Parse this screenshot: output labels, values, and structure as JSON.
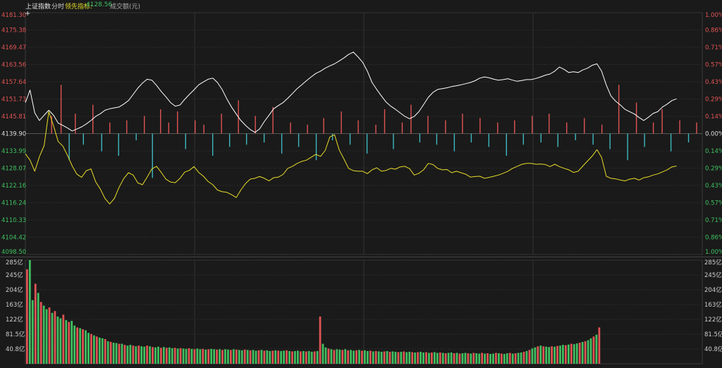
{
  "header": {
    "index_name": "上证指数",
    "timeshare": "分时",
    "leading_label": "领先指标:",
    "leading_value": "4128.56",
    "turnover_label": "成交额(元)"
  },
  "colors": {
    "background": "#1a1a1a",
    "up": "#e05454",
    "down": "#3fb8c0",
    "price_line": "#ffffff",
    "leading_line": "#e8dc2a",
    "vol_up": "#e05454",
    "vol_down": "#3fc060"
  },
  "chart_data": [
    {
      "type": "line",
      "title": "上证指数 分时",
      "y_left_ticks": [
        "4181.30",
        "4175.38",
        "4169.47",
        "4163.56",
        "4157.64",
        "4151.73",
        "4145.81",
        "4139.90",
        "4133.99",
        "4128.07",
        "4122.16",
        "4116.24",
        "4110.33",
        "4104.42",
        "4098.50"
      ],
      "y_right_ticks": [
        "1.00%",
        "0.86%",
        "0.71%",
        "0.57%",
        "0.43%",
        "0.29%",
        "0.14%",
        "0.00%",
        "0.14%",
        "0.29%",
        "0.43%",
        "0.57%",
        "0.71%",
        "0.86%",
        "1.00%"
      ],
      "ylim": [
        4098.5,
        4181.3
      ],
      "baseline": 4139.9,
      "series": [
        {
          "name": "上证指数",
          "values": [
            4150.5,
            4154.8,
            4147.0,
            4144.4,
            4146.2,
            4147.9,
            4146.2,
            4143.5,
            4142.7,
            4141.8,
            4140.8,
            4141.5,
            4142.2,
            4143.2,
            4144.4,
            4145.8,
            4146.7,
            4147.9,
            4148.4,
            4148.7,
            4149.0,
            4150.0,
            4151.2,
            4153.3,
            4155.5,
            4157.2,
            4158.5,
            4158.2,
            4156.4,
            4154.3,
            4152.5,
            4150.5,
            4149.3,
            4149.7,
            4151.6,
            4153.3,
            4154.9,
            4156.6,
            4157.6,
            4158.5,
            4158.9,
            4157.4,
            4155.0,
            4151.8,
            4149.0,
            4146.6,
            4144.4,
            4142.7,
            4141.3,
            4140.3,
            4141.5,
            4144.0,
            4146.2,
            4148.4,
            4149.5,
            4150.5,
            4152.0,
            4153.6,
            4155.3,
            4156.6,
            4158.0,
            4159.3,
            4160.5,
            4161.3,
            4162.3,
            4163.1,
            4163.8,
            4164.8,
            4165.8,
            4167.0,
            4167.8,
            4166.2,
            4164.3,
            4161.3,
            4157.4,
            4155.0,
            4152.8,
            4150.7,
            4149.3,
            4148.2,
            4147.0,
            4145.8,
            4145.0,
            4145.8,
            4147.4,
            4149.8,
            4152.3,
            4154.0,
            4155.0,
            4155.3,
            4155.6,
            4156.0,
            4156.3,
            4156.6,
            4157.0,
            4157.4,
            4158.0,
            4158.9,
            4159.3,
            4159.0,
            4158.5,
            4158.2,
            4158.4,
            4158.7,
            4158.2,
            4157.8,
            4158.1,
            4158.4,
            4158.4,
            4158.8,
            4159.3,
            4159.9,
            4160.3,
            4161.3,
            4162.7,
            4161.9,
            4160.8,
            4161.1,
            4160.8,
            4161.7,
            4162.3,
            4163.3,
            4163.8,
            4161.3,
            4156.5,
            4152.8,
            4151.0,
            4149.7,
            4148.2,
            4147.4,
            4146.6,
            4145.4,
            4144.4,
            4145.5,
            4146.8,
            4147.4,
            4149.0,
            4150.0,
            4151.2,
            4151.8
          ]
        },
        {
          "name": "领先指标",
          "values": [
            4133.0,
            4130.8,
            4127.0,
            4132.0,
            4135.8,
            4147.4,
            4142.6,
            4137.2,
            4135.6,
            4132.4,
            4128.8,
            4126.0,
            4124.9,
            4127.2,
            4127.8,
            4123.4,
            4120.9,
            4117.7,
            4115.8,
            4117.7,
            4121.5,
            4124.5,
            4126.5,
            4125.7,
            4123.0,
            4122.4,
            4125.0,
            4127.8,
            4128.7,
            4126.6,
            4124.3,
            4123.3,
            4123.1,
            4124.6,
            4126.7,
            4127.3,
            4128.6,
            4126.6,
            4125.3,
            4123.5,
            4122.4,
            4120.6,
            4120.0,
            4119.8,
            4119.0,
            4118.0,
            4120.6,
            4122.8,
            4124.3,
            4124.6,
            4125.2,
            4124.6,
            4123.7,
            4124.8,
            4125.0,
            4125.9,
            4128.0,
            4128.7,
            4129.7,
            4130.4,
            4130.8,
            4131.8,
            4132.8,
            4132.1,
            4134.1,
            4138.8,
            4139.5,
            4134.3,
            4131.2,
            4128.0,
            4127.2,
            4127.0,
            4127.0,
            4126.2,
            4127.5,
            4128.2,
            4127.0,
            4127.3,
            4128.0,
            4127.7,
            4128.5,
            4128.7,
            4127.9,
            4125.7,
            4126.3,
            4127.5,
            4129.7,
            4129.3,
            4128.0,
            4127.5,
            4127.6,
            4126.5,
            4127.0,
            4126.5,
            4126.0,
            4125.0,
            4125.2,
            4125.3,
            4124.6,
            4124.9,
            4125.3,
            4125.7,
            4126.3,
            4127.0,
            4128.0,
            4128.7,
            4129.4,
            4129.7,
            4129.7,
            4129.4,
            4129.5,
            4129.3,
            4128.6,
            4129.4,
            4128.6,
            4128.0,
            4127.5,
            4126.6,
            4127.0,
            4128.8,
            4130.5,
            4132.2,
            4134.4,
            4131.8,
            4125.3,
            4124.6,
            4124.4,
            4124.0,
            4123.7,
            4124.3,
            4124.6,
            4124.0,
            4124.8,
            4125.1,
            4125.7,
            4126.1,
            4126.8,
            4127.5,
            4128.5,
            4128.8
          ]
        }
      ],
      "bars_x": [
        0.038,
        0.052,
        0.064,
        0.073,
        0.085,
        0.099,
        0.112,
        0.124,
        0.137,
        0.149,
        0.163,
        0.175,
        0.187,
        0.199,
        0.211,
        0.224,
        0.236,
        0.25,
        0.263,
        0.276,
        0.289,
        0.301,
        0.314,
        0.326,
        0.339,
        0.352,
        0.365,
        0.378,
        0.391,
        0.403,
        0.416,
        0.429,
        0.44,
        0.453,
        0.466,
        0.479,
        0.491,
        0.504,
        0.517,
        0.53,
        0.543,
        0.556,
        0.569,
        0.582,
        0.594,
        0.607,
        0.62,
        0.633,
        0.645,
        0.658,
        0.671,
        0.684,
        0.697,
        0.71,
        0.722,
        0.735,
        0.748,
        0.761,
        0.773,
        0.786,
        0.799,
        0.812,
        0.825,
        0.838,
        0.851,
        0.863,
        0.876,
        0.889,
        0.902,
        0.914,
        0.927,
        0.94,
        0.953,
        0.966,
        0.979,
        0.991
      ],
      "bars_value": [
        0.08,
        0.22,
        -0.12,
        0.09,
        -0.05,
        0.13,
        -0.08,
        0.05,
        -0.1,
        0.06,
        -0.03,
        0.08,
        -0.2,
        0.11,
        0.05,
        0.1,
        -0.07,
        0.06,
        0.04,
        -0.1,
        0.09,
        -0.06,
        0.15,
        -0.05,
        0.08,
        -0.04,
        0.12,
        -0.09,
        0.05,
        -0.06,
        0.04,
        -0.12,
        0.07,
        -0.03,
        0.1,
        -0.05,
        0.06,
        -0.09,
        0.04,
        0.11,
        -0.07,
        0.05,
        0.13,
        -0.04,
        0.08,
        -0.05,
        0.06,
        -0.08,
        0.09,
        -0.04,
        0.07,
        -0.06,
        0.05,
        -0.1,
        0.06,
        -0.05,
        0.08,
        -0.04,
        0.09,
        -0.06,
        0.05,
        -0.03,
        0.07,
        -0.05,
        0.04,
        -0.07,
        0.22,
        -0.12,
        0.14,
        -0.06,
        0.05,
        0.11,
        -0.08,
        0.06,
        -0.04,
        0.05
      ]
    },
    {
      "type": "bar",
      "title": "成交额(元)",
      "y_ticks": [
        "285亿",
        "245亿",
        "204亿",
        "163亿",
        "122亿",
        "81.5亿",
        "40.8亿"
      ],
      "ylim": [
        0,
        285
      ],
      "values": [
        260,
        285,
        175,
        220,
        195,
        170,
        160,
        150,
        155,
        140,
        145,
        130,
        125,
        135,
        120,
        115,
        118,
        105,
        100,
        98,
        95,
        92,
        85,
        82,
        78,
        75,
        72,
        70,
        68,
        62,
        60,
        58,
        57,
        55,
        55,
        52,
        50,
        52,
        50,
        48,
        50,
        48,
        47,
        50,
        48,
        46,
        45,
        47,
        44,
        46,
        44,
        45,
        43,
        44,
        42,
        43,
        42,
        41,
        43,
        41,
        40,
        42,
        40,
        41,
        39,
        40,
        41,
        40,
        39,
        40,
        38,
        40,
        39,
        38,
        40,
        39,
        38,
        37,
        39,
        38,
        37,
        38,
        36,
        37,
        38,
        36,
        37,
        35,
        36,
        37,
        36,
        35,
        36,
        37,
        35,
        34,
        35,
        36,
        34,
        35,
        34,
        35,
        33,
        34,
        35,
        130,
        55,
        45,
        42,
        40,
        38,
        40,
        39,
        38,
        40,
        37,
        38,
        36,
        37,
        38,
        36,
        37,
        35,
        36,
        34,
        35,
        34,
        33,
        34,
        35,
        33,
        34,
        33,
        32,
        33,
        34,
        32,
        33,
        32,
        31,
        32,
        33,
        31,
        32,
        30,
        31,
        32,
        30,
        31,
        30,
        29,
        30,
        31,
        29,
        30,
        28,
        29,
        30,
        29,
        28,
        30,
        29,
        28,
        30,
        28,
        29,
        27,
        28,
        30,
        29,
        28,
        27,
        29,
        30,
        28,
        29,
        30,
        31,
        33,
        35,
        38,
        42,
        45,
        48,
        50,
        48,
        47,
        46,
        48,
        47,
        49,
        50,
        52,
        51,
        53,
        55,
        54,
        56,
        58,
        60,
        62,
        65,
        70,
        75,
        80,
        100
      ]
    }
  ]
}
